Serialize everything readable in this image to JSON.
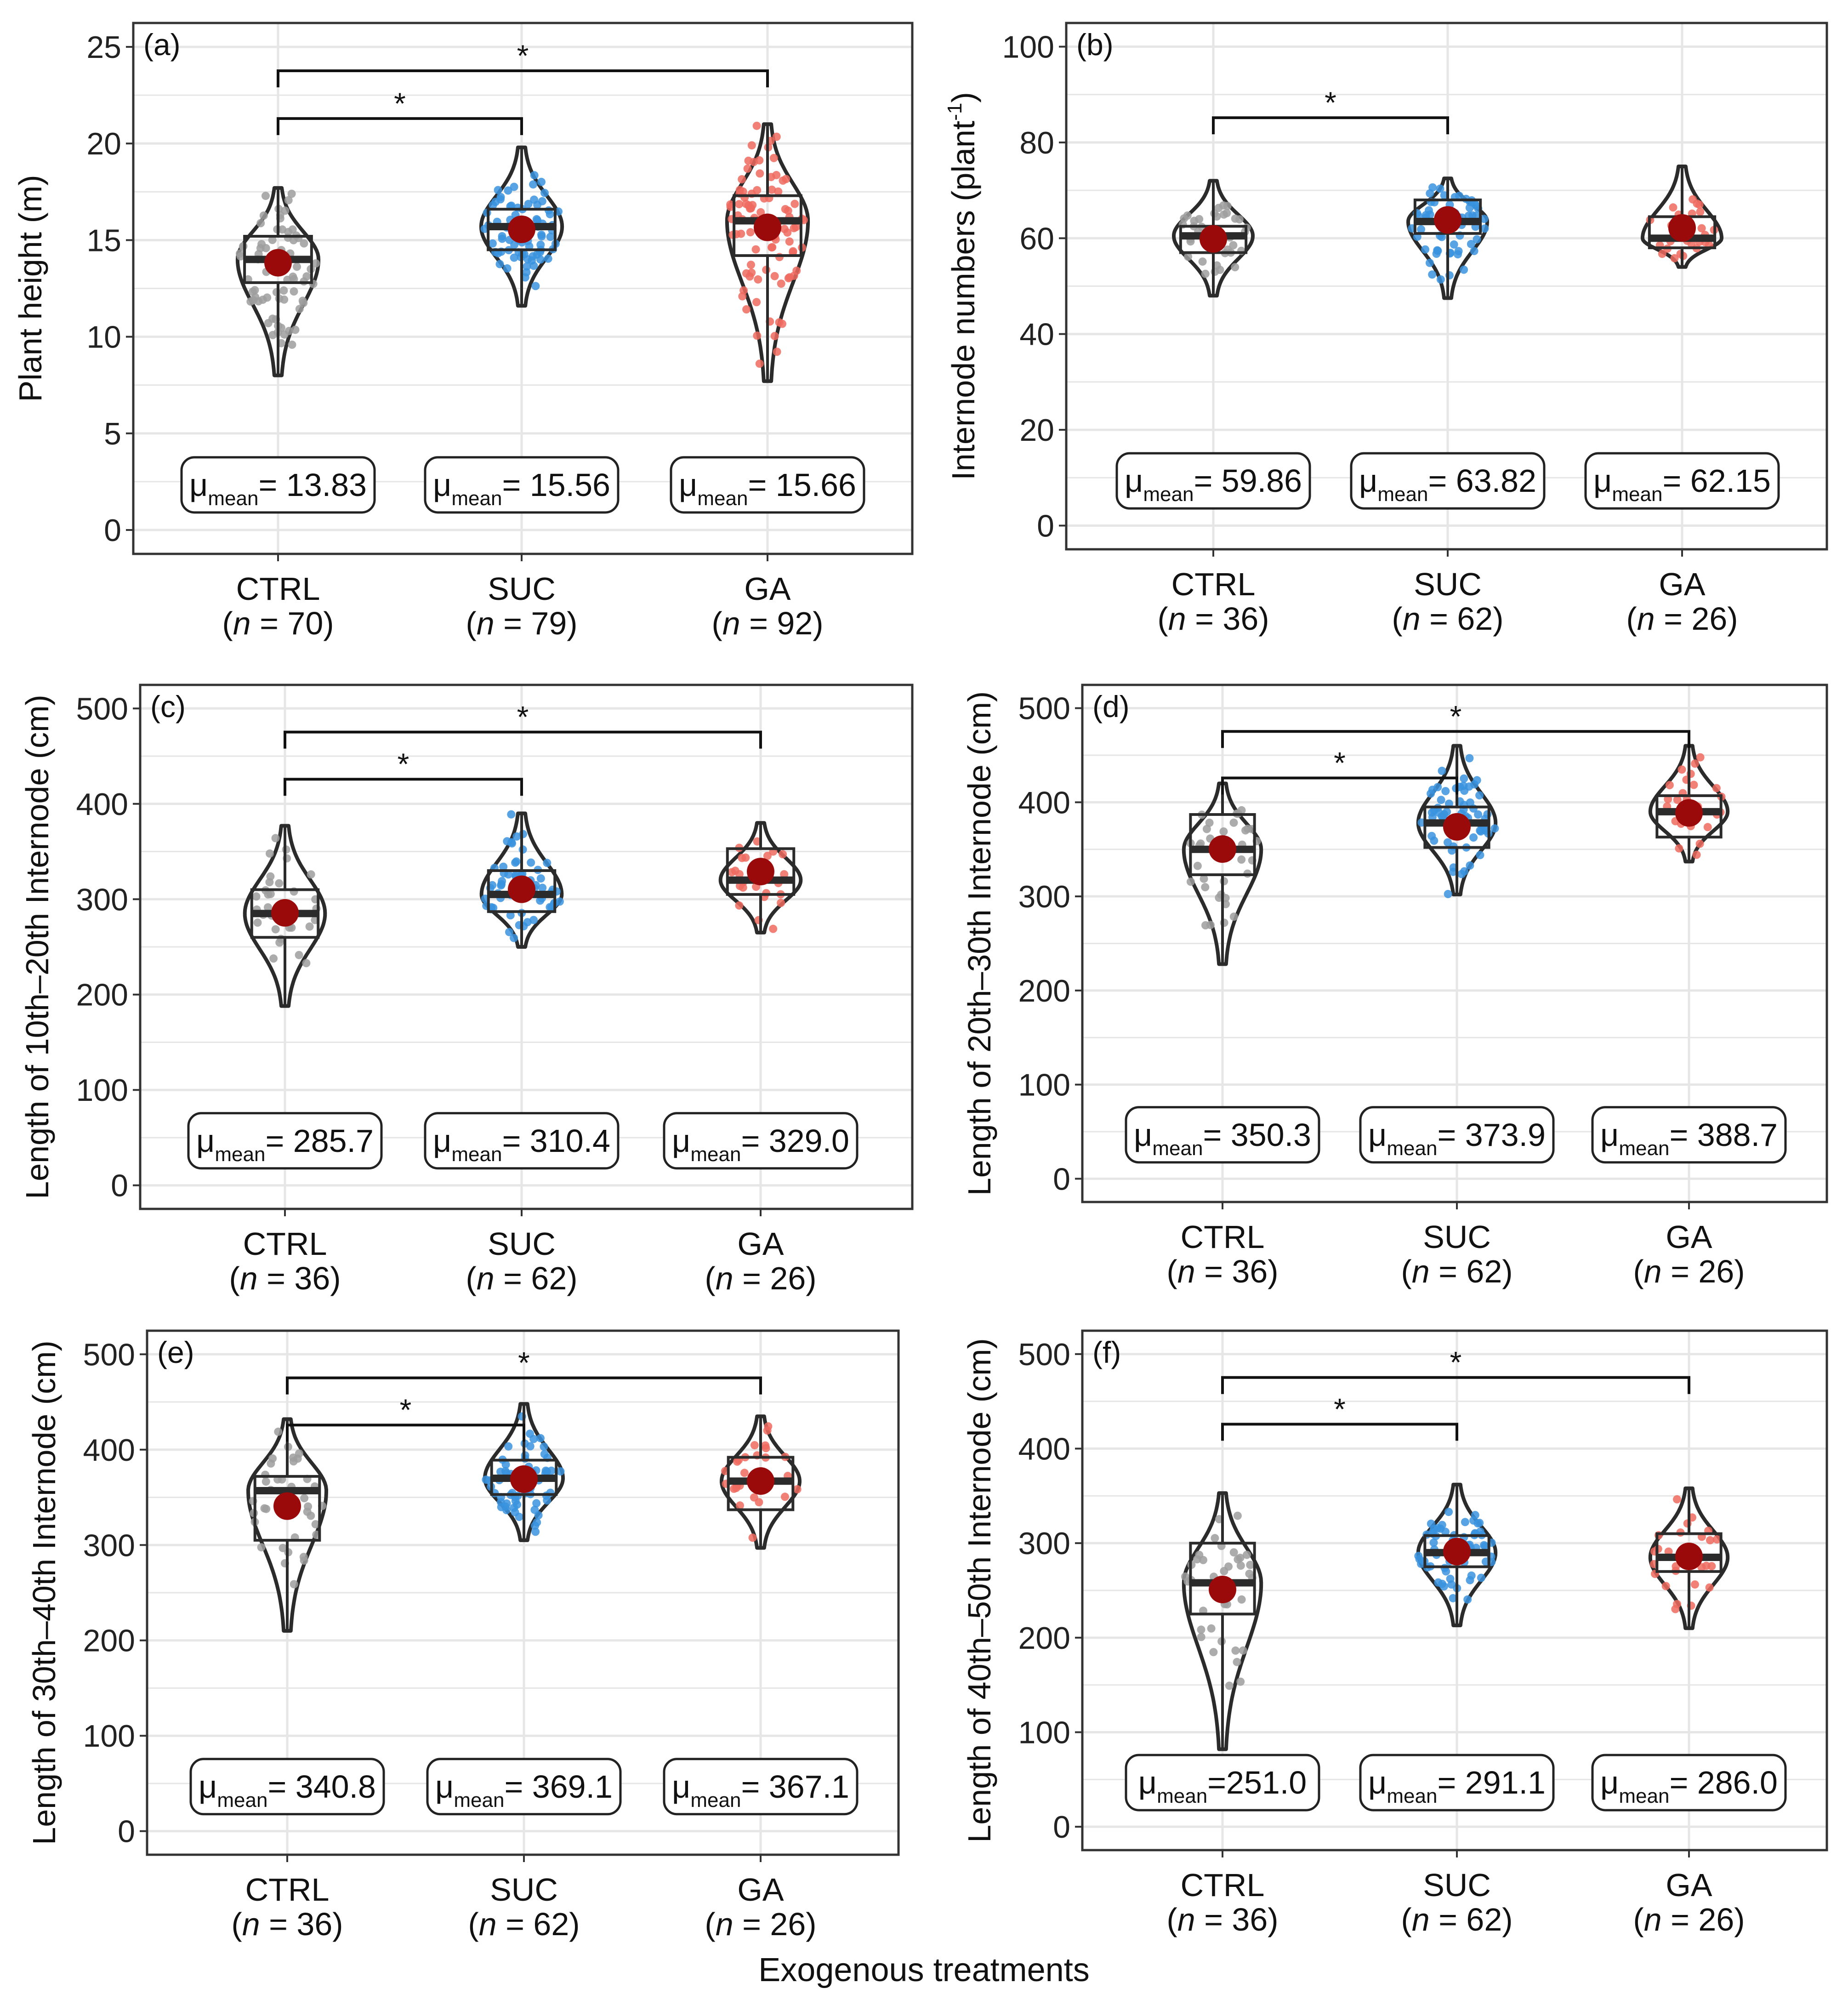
{
  "figure": {
    "x_title": "Exogenous treatments",
    "point_colors": {
      "CTRL": "#9e9e9e",
      "SUC": "#3a93de",
      "GA": "#ee6a5f"
    },
    "mean_color": "#9b0a0a",
    "line_color": "#2b2b2b",
    "grid_color": "#e6e6e6"
  },
  "chart_data": [
    {
      "type": "violin-box",
      "panel_label": "(a)",
      "ylabel": "Plant height (m)",
      "ylim": [
        0,
        25
      ],
      "yticks": [
        "0",
        "5",
        "10",
        "15",
        "20",
        "25"
      ],
      "grid": true,
      "categories": [
        "CTRL",
        "SUC",
        "GA"
      ],
      "n_labels": [
        "70",
        "79",
        "92"
      ],
      "mean_labels": [
        "13.83",
        "15.56",
        "15.66"
      ],
      "mean_label_prefix": [
        "= ",
        "= ",
        "= "
      ],
      "means": [
        13.83,
        15.56,
        15.66
      ],
      "box": [
        [
          12.8,
          14.0,
          15.2
        ],
        [
          14.5,
          15.7,
          16.6
        ],
        [
          14.2,
          16.0,
          17.3
        ]
      ],
      "violin_range": [
        [
          8.0,
          17.7
        ],
        [
          11.6,
          19.8
        ],
        [
          7.7,
          21.0
        ]
      ],
      "significance": [
        {
          "from": 0,
          "to": 1,
          "label": "*"
        },
        {
          "from": 0,
          "to": 2,
          "label": "*"
        }
      ]
    },
    {
      "type": "violin-box",
      "panel_label": "(b)",
      "ylabel": "Internode numbers (plant",
      "ylabel_sup": "-1",
      "ylabel_close": ")",
      "ylim": [
        0,
        100
      ],
      "yticks": [
        "0",
        "20",
        "40",
        "60",
        "80",
        "100"
      ],
      "grid": true,
      "categories": [
        "CTRL",
        "SUC",
        "GA"
      ],
      "n_labels": [
        "36",
        "62",
        "26"
      ],
      "mean_labels": [
        "59.86",
        "63.82",
        "62.15"
      ],
      "mean_label_prefix": [
        "= ",
        "= ",
        "= "
      ],
      "means": [
        59.86,
        63.82,
        62.15
      ],
      "box": [
        [
          57.0,
          60.5,
          62.5
        ],
        [
          61.0,
          63.5,
          68.0
        ],
        [
          58.0,
          60.0,
          64.5
        ]
      ],
      "violin_range": [
        [
          48.0,
          72.0
        ],
        [
          47.5,
          72.5
        ],
        [
          54.0,
          75.0
        ]
      ],
      "significance": [
        {
          "from": 0,
          "to": 1,
          "label": "*"
        }
      ]
    },
    {
      "type": "violin-box",
      "panel_label": "(c)",
      "ylabel": "Length of 10th–20th Internode (cm)",
      "ylim": [
        0,
        500
      ],
      "yticks": [
        "0",
        "100",
        "200",
        "300",
        "400",
        "500"
      ],
      "grid": true,
      "categories": [
        "CTRL",
        "SUC",
        "GA"
      ],
      "n_labels": [
        "36",
        "62",
        "26"
      ],
      "mean_labels": [
        "285.7",
        "310.4",
        "329.0"
      ],
      "mean_label_prefix": [
        "= ",
        "= ",
        "= "
      ],
      "means": [
        285.7,
        310.4,
        329.0
      ],
      "box": [
        [
          260,
          285,
          310
        ],
        [
          287,
          305,
          330
        ],
        [
          305,
          320,
          353
        ]
      ],
      "violin_range": [
        [
          188,
          377
        ],
        [
          250,
          390
        ],
        [
          265,
          380
        ]
      ],
      "significance": [
        {
          "from": 0,
          "to": 1,
          "label": "*"
        },
        {
          "from": 0,
          "to": 2,
          "label": "*"
        }
      ]
    },
    {
      "type": "violin-box",
      "panel_label": "(d)",
      "ylabel": "Length of 20th–30th Internode (cm)",
      "ylim": [
        0,
        500
      ],
      "yticks": [
        "0",
        "100",
        "200",
        "300",
        "400",
        "500"
      ],
      "grid": true,
      "categories": [
        "CTRL",
        "SUC",
        "GA"
      ],
      "n_labels": [
        "36",
        "62",
        "26"
      ],
      "mean_labels": [
        "350.3",
        "373.9",
        "388.7"
      ],
      "mean_label_prefix": [
        "= ",
        "= ",
        "= "
      ],
      "means": [
        350.3,
        373.9,
        388.7
      ],
      "box": [
        [
          323,
          350,
          387
        ],
        [
          352,
          378,
          395
        ],
        [
          363,
          390,
          407
        ]
      ],
      "violin_range": [
        [
          228,
          420
        ],
        [
          302,
          460
        ],
        [
          337,
          460
        ]
      ],
      "significance": [
        {
          "from": 0,
          "to": 1,
          "label": "*"
        },
        {
          "from": 0,
          "to": 2,
          "label": "*"
        }
      ]
    },
    {
      "type": "violin-box",
      "panel_label": "(e)",
      "ylabel": "Length of 30th–40th Internode (cm)",
      "ylim": [
        0,
        500
      ],
      "yticks": [
        "0",
        "100",
        "200",
        "300",
        "400",
        "500"
      ],
      "grid": true,
      "categories": [
        "CTRL",
        "SUC",
        "GA"
      ],
      "n_labels": [
        "36",
        "62",
        "26"
      ],
      "mean_labels": [
        "340.8",
        "369.1",
        "367.1"
      ],
      "mean_label_prefix": [
        "= ",
        "= ",
        "= "
      ],
      "means": [
        340.8,
        369.1,
        367.1
      ],
      "box": [
        [
          305,
          357,
          372
        ],
        [
          353,
          370,
          389
        ],
        [
          337,
          367,
          392
        ]
      ],
      "violin_range": [
        [
          210,
          432
        ],
        [
          305,
          448
        ],
        [
          297,
          435
        ]
      ],
      "significance": [
        {
          "from": 0,
          "to": 1,
          "label": "*"
        },
        {
          "from": 0,
          "to": 2,
          "label": "*"
        }
      ]
    },
    {
      "type": "violin-box",
      "panel_label": "(f)",
      "ylabel": "Length of 40th–50th Internode (cm)",
      "ylim": [
        0,
        500
      ],
      "yticks": [
        "0",
        "100",
        "200",
        "300",
        "400",
        "500"
      ],
      "grid": true,
      "categories": [
        "CTRL",
        "SUC",
        "GA"
      ],
      "n_labels": [
        "36",
        "62",
        "26"
      ],
      "mean_labels": [
        "251.0",
        "291.1",
        "286.0"
      ],
      "mean_label_prefix": [
        "=",
        "= ",
        "= "
      ],
      "means": [
        251.0,
        291.1,
        286.0
      ],
      "box": [
        [
          225,
          258,
          300
        ],
        [
          275,
          290,
          308
        ],
        [
          270,
          285,
          310
        ]
      ],
      "violin_range": [
        [
          82,
          353
        ],
        [
          213,
          362
        ],
        [
          210,
          358
        ]
      ],
      "significance": [
        {
          "from": 0,
          "to": 1,
          "label": "*"
        },
        {
          "from": 0,
          "to": 2,
          "label": "*"
        }
      ]
    }
  ]
}
